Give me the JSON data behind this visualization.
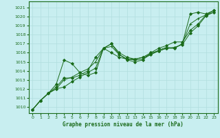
{
  "xlabel": "Graphe pression niveau de la mer (hPa)",
  "bg_color": "#c8eef0",
  "grid_color": "#b0dede",
  "line_color": "#1a6b1a",
  "xlim": [
    -0.5,
    23.5
  ],
  "ylim": [
    1009.3,
    1021.7
  ],
  "yticks": [
    1010,
    1011,
    1012,
    1013,
    1014,
    1015,
    1016,
    1017,
    1018,
    1019,
    1020,
    1021
  ],
  "xticks": [
    0,
    1,
    2,
    3,
    4,
    5,
    6,
    7,
    8,
    9,
    10,
    11,
    12,
    13,
    14,
    15,
    16,
    17,
    18,
    19,
    20,
    21,
    22,
    23
  ],
  "series": [
    {
      "y": [
        1009.7,
        1010.7,
        1011.5,
        1012.0,
        1012.2,
        1012.8,
        1013.3,
        1013.8,
        1014.3,
        1016.5,
        1017.0,
        1016.0,
        1015.5,
        1015.3,
        1015.5,
        1015.8,
        1016.2,
        1016.5,
        1016.5,
        1017.0,
        1020.3,
        1020.5,
        1020.3,
        1020.7
      ],
      "marker": "D",
      "markersize": 2.0
    },
    {
      "y": [
        1009.7,
        1010.7,
        1011.5,
        1012.0,
        1013.0,
        1013.3,
        1013.8,
        1014.2,
        1015.0,
        1016.5,
        1016.7,
        1015.8,
        1015.3,
        1015.2,
        1015.3,
        1015.8,
        1016.3,
        1016.6,
        1016.5,
        1017.0,
        1019.2,
        1019.8,
        1020.2,
        1020.5
      ],
      "marker": "+",
      "markersize": 3.5
    },
    {
      "y": [
        1009.7,
        1010.7,
        1011.5,
        1012.2,
        1013.2,
        1013.2,
        1013.5,
        1014.0,
        1015.5,
        1016.5,
        1016.0,
        1015.5,
        1015.3,
        1015.3,
        1015.5,
        1016.0,
        1016.2,
        1016.5,
        1016.6,
        1016.9,
        1018.2,
        1019.0,
        1020.1,
        1020.5
      ],
      "marker": "D",
      "markersize": 2.0
    },
    {
      "y": [
        1009.7,
        1010.7,
        1011.5,
        1012.5,
        1015.2,
        1014.8,
        1013.8,
        1013.5,
        1013.8,
        1016.5,
        1017.0,
        1015.8,
        1015.2,
        1015.0,
        1015.2,
        1016.0,
        1016.5,
        1016.8,
        1017.2,
        1017.2,
        1018.5,
        1019.2,
        1020.2,
        1020.7
      ],
      "marker": "D",
      "markersize": 2.0
    }
  ]
}
